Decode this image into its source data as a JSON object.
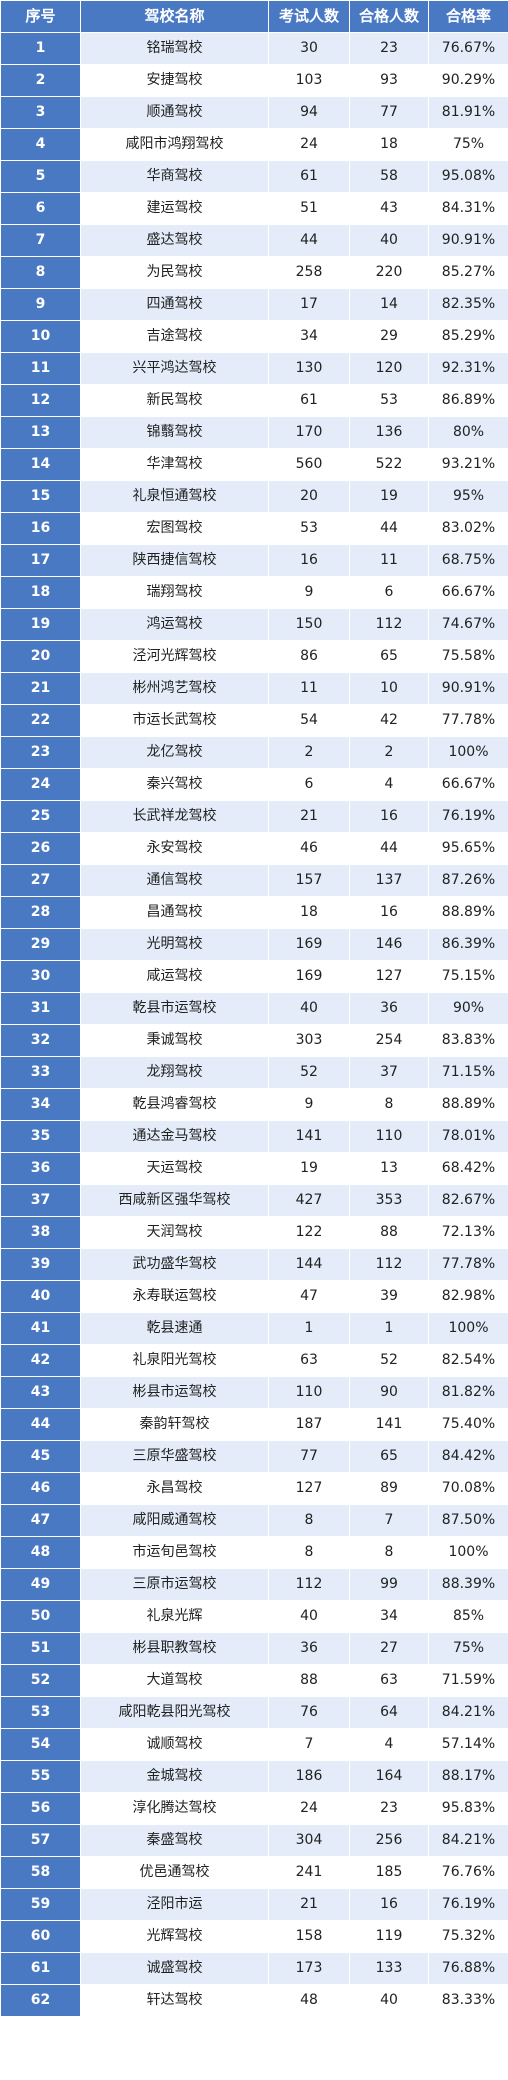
{
  "table": {
    "headers": [
      "序号",
      "驾校名称",
      "考试人数",
      "合格人数",
      "合格率"
    ],
    "rows": [
      [
        "1",
        "铭瑞驾校",
        "30",
        "23",
        "76.67%"
      ],
      [
        "2",
        "安捷驾校",
        "103",
        "93",
        "90.29%"
      ],
      [
        "3",
        "顺通驾校",
        "94",
        "77",
        "81.91%"
      ],
      [
        "4",
        "咸阳市鸿翔驾校",
        "24",
        "18",
        "75%"
      ],
      [
        "5",
        "华商驾校",
        "61",
        "58",
        "95.08%"
      ],
      [
        "6",
        "建运驾校",
        "51",
        "43",
        "84.31%"
      ],
      [
        "7",
        "盛达驾校",
        "44",
        "40",
        "90.91%"
      ],
      [
        "8",
        "为民驾校",
        "258",
        "220",
        "85.27%"
      ],
      [
        "9",
        "四通驾校",
        "17",
        "14",
        "82.35%"
      ],
      [
        "10",
        "吉途驾校",
        "34",
        "29",
        "85.29%"
      ],
      [
        "11",
        "兴平鸿达驾校",
        "130",
        "120",
        "92.31%"
      ],
      [
        "12",
        "新民驾校",
        "61",
        "53",
        "86.89%"
      ],
      [
        "13",
        "锦蘙驾校",
        "170",
        "136",
        "80%"
      ],
      [
        "14",
        "华津驾校",
        "560",
        "522",
        "93.21%"
      ],
      [
        "15",
        "礼泉恒通驾校",
        "20",
        "19",
        "95%"
      ],
      [
        "16",
        "宏图驾校",
        "53",
        "44",
        "83.02%"
      ],
      [
        "17",
        "陕西捷信驾校",
        "16",
        "11",
        "68.75%"
      ],
      [
        "18",
        "瑞翔驾校",
        "9",
        "6",
        "66.67%"
      ],
      [
        "19",
        "鸿运驾校",
        "150",
        "112",
        "74.67%"
      ],
      [
        "20",
        "泾河光辉驾校",
        "86",
        "65",
        "75.58%"
      ],
      [
        "21",
        "彬州鸿艺驾校",
        "11",
        "10",
        "90.91%"
      ],
      [
        "22",
        "市运长武驾校",
        "54",
        "42",
        "77.78%"
      ],
      [
        "23",
        "龙亿驾校",
        "2",
        "2",
        "100%"
      ],
      [
        "24",
        "秦兴驾校",
        "6",
        "4",
        "66.67%"
      ],
      [
        "25",
        "长武祥龙驾校",
        "21",
        "16",
        "76.19%"
      ],
      [
        "26",
        "永安驾校",
        "46",
        "44",
        "95.65%"
      ],
      [
        "27",
        "通信驾校",
        "157",
        "137",
        "87.26%"
      ],
      [
        "28",
        "昌通驾校",
        "18",
        "16",
        "88.89%"
      ],
      [
        "29",
        "光明驾校",
        "169",
        "146",
        "86.39%"
      ],
      [
        "30",
        "咸运驾校",
        "169",
        "127",
        "75.15%"
      ],
      [
        "31",
        "乾县市运驾校",
        "40",
        "36",
        "90%"
      ],
      [
        "32",
        "秉诚驾校",
        "303",
        "254",
        "83.83%"
      ],
      [
        "33",
        "龙翔驾校",
        "52",
        "37",
        "71.15%"
      ],
      [
        "34",
        "乾县鸿睿驾校",
        "9",
        "8",
        "88.89%"
      ],
      [
        "35",
        "通达金马驾校",
        "141",
        "110",
        "78.01%"
      ],
      [
        "36",
        "天运驾校",
        "19",
        "13",
        "68.42%"
      ],
      [
        "37",
        "西咸新区强华驾校",
        "427",
        "353",
        "82.67%"
      ],
      [
        "38",
        "天润驾校",
        "122",
        "88",
        "72.13%"
      ],
      [
        "39",
        "武功盛华驾校",
        "144",
        "112",
        "77.78%"
      ],
      [
        "40",
        "永寿联运驾校",
        "47",
        "39",
        "82.98%"
      ],
      [
        "41",
        "乾县速通",
        "1",
        "1",
        "100%"
      ],
      [
        "42",
        "礼泉阳光驾校",
        "63",
        "52",
        "82.54%"
      ],
      [
        "43",
        "彬县市运驾校",
        "110",
        "90",
        "81.82%"
      ],
      [
        "44",
        "秦韵轩驾校",
        "187",
        "141",
        "75.40%"
      ],
      [
        "45",
        "三原华盛驾校",
        "77",
        "65",
        "84.42%"
      ],
      [
        "46",
        "永昌驾校",
        "127",
        "89",
        "70.08%"
      ],
      [
        "47",
        "咸阳威通驾校",
        "8",
        "7",
        "87.50%"
      ],
      [
        "48",
        "市运旬邑驾校",
        "8",
        "8",
        "100%"
      ],
      [
        "49",
        "三原市运驾校",
        "112",
        "99",
        "88.39%"
      ],
      [
        "50",
        "礼泉光辉",
        "40",
        "34",
        "85%"
      ],
      [
        "51",
        "彬县职教驾校",
        "36",
        "27",
        "75%"
      ],
      [
        "52",
        "大道驾校",
        "88",
        "63",
        "71.59%"
      ],
      [
        "53",
        "咸阳乾县阳光驾校",
        "76",
        "64",
        "84.21%"
      ],
      [
        "54",
        "诚顺驾校",
        "7",
        "4",
        "57.14%"
      ],
      [
        "55",
        "金城驾校",
        "186",
        "164",
        "88.17%"
      ],
      [
        "56",
        "淳化腾达驾校",
        "24",
        "23",
        "95.83%"
      ],
      [
        "57",
        "秦盛驾校",
        "304",
        "256",
        "84.21%"
      ],
      [
        "58",
        "优邑通驾校",
        "241",
        "185",
        "76.76%"
      ],
      [
        "59",
        "泾阳市运",
        "21",
        "16",
        "76.19%"
      ],
      [
        "60",
        "光辉驾校",
        "158",
        "119",
        "75.32%"
      ],
      [
        "61",
        "诚盛驾校",
        "173",
        "133",
        "76.88%"
      ],
      [
        "62",
        "轩达驾校",
        "48",
        "40",
        "83.33%"
      ]
    ]
  }
}
